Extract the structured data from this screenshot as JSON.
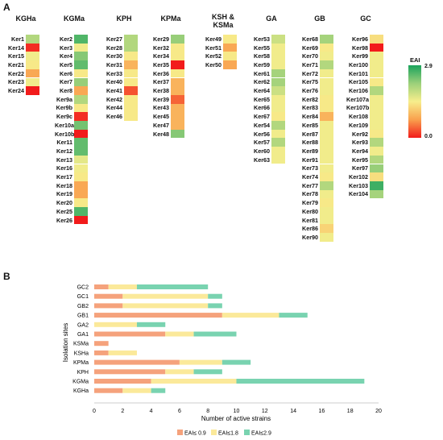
{
  "panel_a": {
    "label": "A"
  },
  "panel_b": {
    "label": "B"
  },
  "heatmap": {
    "legend": {
      "title": "EAI",
      "max_label": "2.9",
      "min_label": "0.0"
    },
    "groups": [
      {
        "name": "KGHa",
        "cells": [
          {
            "label": "Ker1",
            "eai": 2.0
          },
          {
            "label": "Ker14",
            "eai": 0.1
          },
          {
            "label": "Ker15",
            "eai": 1.5
          },
          {
            "label": "Ker21",
            "eai": 1.4
          },
          {
            "label": "Ker22",
            "eai": 0.8
          },
          {
            "label": "Ker23",
            "eai": 1.5
          },
          {
            "label": "Ker24",
            "eai": 0.0
          }
        ]
      },
      {
        "name": "KGMa",
        "cells": [
          {
            "label": "Ker2",
            "eai": 2.6
          },
          {
            "label": "Ker3",
            "eai": 1.5
          },
          {
            "label": "Ker4",
            "eai": 2.3
          },
          {
            "label": "Ker5",
            "eai": 2.5
          },
          {
            "label": "Ker6",
            "eai": 1.4
          },
          {
            "label": "Ker7",
            "eai": 2.2
          },
          {
            "label": "Ker8",
            "eai": 0.8
          },
          {
            "label": "Ker9a",
            "eai": 2.0
          },
          {
            "label": "Ker9b",
            "eai": 1.4
          },
          {
            "label": "Ker9c",
            "eai": 0.1
          },
          {
            "label": "Ker10a",
            "eai": 2.4
          },
          {
            "label": "Ker10b",
            "eai": 0.0
          },
          {
            "label": "Ker11",
            "eai": 2.5
          },
          {
            "label": "Ker12",
            "eai": 2.5
          },
          {
            "label": "Ker13",
            "eai": 1.6
          },
          {
            "label": "Ker16",
            "eai": 1.5
          },
          {
            "label": "Ker17",
            "eai": 1.4
          },
          {
            "label": "Ker18",
            "eai": 0.8
          },
          {
            "label": "Ker19",
            "eai": 0.8
          },
          {
            "label": "Ker20",
            "eai": 1.4
          },
          {
            "label": "Ker25",
            "eai": 2.6
          },
          {
            "label": "Ker26",
            "eai": 0.0
          }
        ]
      },
      {
        "name": "KPH",
        "cells": [
          {
            "label": "Ker27",
            "eai": 2.0
          },
          {
            "label": "Ker28",
            "eai": 2.0
          },
          {
            "label": "Ker30",
            "eai": 1.4
          },
          {
            "label": "Ker31",
            "eai": 0.9
          },
          {
            "label": "Ker33",
            "eai": 1.4
          },
          {
            "label": "Ker40",
            "eai": 1.4
          },
          {
            "label": "Ker41",
            "eai": 0.3
          },
          {
            "label": "Ker42",
            "eai": 1.4
          },
          {
            "label": "Ker44",
            "eai": 1.4
          },
          {
            "label": "Ker46",
            "eai": 1.4
          }
        ]
      },
      {
        "name": "KPMa",
        "cells": [
          {
            "label": "Ker29",
            "eai": 2.2
          },
          {
            "label": "Ker32",
            "eai": 1.4
          },
          {
            "label": "Ker34",
            "eai": 1.4
          },
          {
            "label": "Ker35",
            "eai": 0.0
          },
          {
            "label": "Ker36",
            "eai": 1.4
          },
          {
            "label": "Ker37",
            "eai": 0.9
          },
          {
            "label": "Ker38",
            "eai": 0.9
          },
          {
            "label": "Ker39",
            "eai": 0.4
          },
          {
            "label": "Ker43",
            "eai": 0.9
          },
          {
            "label": "Ker45",
            "eai": 0.9
          },
          {
            "label": "Ker47",
            "eai": 0.9
          },
          {
            "label": "Ker48",
            "eai": 2.3
          }
        ]
      },
      {
        "name": "KSH &\nKSMa",
        "cells": [
          {
            "label": "Ker49",
            "eai": 1.4
          },
          {
            "label": "Ker51",
            "eai": 0.8
          },
          {
            "label": "Ker52",
            "eai": 1.4
          },
          {
            "label": "Ker50",
            "eai": 0.8
          }
        ]
      },
      {
        "name": "GA",
        "cells": [
          {
            "label": "Ker53",
            "eai": 1.8
          },
          {
            "label": "Ker55",
            "eai": 1.5
          },
          {
            "label": "Ker58",
            "eai": 1.5
          },
          {
            "label": "Ker59",
            "eai": 1.5
          },
          {
            "label": "Ker61",
            "eai": 2.1
          },
          {
            "label": "Ker62",
            "eai": 2.1
          },
          {
            "label": "Ker64",
            "eai": 1.8
          },
          {
            "label": "Ker65",
            "eai": 1.5
          },
          {
            "label": "Ker66",
            "eai": 1.5
          },
          {
            "label": "Ker67",
            "eai": 1.4
          },
          {
            "label": "Ker54",
            "eai": 2.0
          },
          {
            "label": "Ker56",
            "eai": 1.5
          },
          {
            "label": "Ker57",
            "eai": 2.0
          },
          {
            "label": "Ker60",
            "eai": 1.5
          },
          {
            "label": "Ker63",
            "eai": 1.5
          }
        ]
      },
      {
        "name": "GB",
        "cells": [
          {
            "label": "Ker68",
            "eai": 2.1
          },
          {
            "label": "Ker69",
            "eai": 1.4
          },
          {
            "label": "Ker70",
            "eai": 1.5
          },
          {
            "label": "Ker71",
            "eai": 2.0
          },
          {
            "label": "Ker72",
            "eai": 1.5
          },
          {
            "label": "Ker75",
            "eai": 1.5
          },
          {
            "label": "Ker76",
            "eai": 1.5
          },
          {
            "label": "Ker82",
            "eai": 1.4
          },
          {
            "label": "Ker83",
            "eai": 1.4
          },
          {
            "label": "Ker84",
            "eai": 0.9
          },
          {
            "label": "Ker85",
            "eai": 1.5
          },
          {
            "label": "Ker87",
            "eai": 1.5
          },
          {
            "label": "Ker88",
            "eai": 1.5
          },
          {
            "label": "Ker89",
            "eai": 1.5
          },
          {
            "label": "Ker91",
            "eai": 1.5
          },
          {
            "label": "Ker73",
            "eai": 1.5
          },
          {
            "label": "Ker74",
            "eai": 1.4
          },
          {
            "label": "Ker77",
            "eai": 2.0
          },
          {
            "label": "Ker78",
            "eai": 1.5
          },
          {
            "label": "Ker79",
            "eai": 1.4
          },
          {
            "label": "Ker80",
            "eai": 1.5
          },
          {
            "label": "Ker81",
            "eai": 1.5
          },
          {
            "label": "Ker86",
            "eai": 1.2
          },
          {
            "label": "Ker90",
            "eai": 1.5
          }
        ]
      },
      {
        "name": "GC",
        "cells": [
          {
            "label": "Ker96",
            "eai": 1.3
          },
          {
            "label": "Ker98",
            "eai": 0.0
          },
          {
            "label": "Ker99",
            "eai": 1.5
          },
          {
            "label": "Ker100",
            "eai": 1.5
          },
          {
            "label": "Ker101",
            "eai": 1.5
          },
          {
            "label": "Ker105",
            "eai": 1.4
          },
          {
            "label": "Ker106",
            "eai": 2.0
          },
          {
            "label": "Ker107a",
            "eai": 1.5
          },
          {
            "label": "Ker107b",
            "eai": 1.5
          },
          {
            "label": "Ker108",
            "eai": 1.5
          },
          {
            "label": "Ker109",
            "eai": 1.5
          },
          {
            "label": "Ker92",
            "eai": 1.4
          },
          {
            "label": "Ker93",
            "eai": 2.0
          },
          {
            "label": "Ker94",
            "eai": 1.5
          },
          {
            "label": "Ker95",
            "eai": 2.0
          },
          {
            "label": "Ker97",
            "eai": 2.2
          },
          {
            "label": "Ker102",
            "eai": 1.3
          },
          {
            "label": "Ker103",
            "eai": 2.7
          },
          {
            "label": "Ker104",
            "eai": 2.1
          }
        ]
      }
    ]
  },
  "chart_data": {
    "type": "bar",
    "orientation": "horizontal",
    "stacked": true,
    "categories": [
      "GC2",
      "GC1",
      "GB2",
      "GB1",
      "GA2",
      "GA1",
      "KSMa",
      "KSHa",
      "KPMa",
      "KPH",
      "KGMa",
      "KGHa"
    ],
    "series": [
      {
        "name": "EAI≤ 0.9",
        "color": "#f5a27c",
        "values": [
          1,
          2,
          2,
          9,
          0,
          5,
          1,
          1,
          6,
          5,
          4,
          2
        ]
      },
      {
        "name": "EAI≤1.8",
        "color": "#fbe99a",
        "values": [
          2,
          6,
          6,
          4,
          3,
          2,
          0,
          2,
          3,
          2,
          6,
          2
        ]
      },
      {
        "name": "EAI≤2.9",
        "color": "#79d3b0",
        "values": [
          5,
          1,
          1,
          2,
          2,
          3,
          0,
          0,
          2,
          2,
          9,
          1
        ]
      }
    ],
    "xlabel": "Number of active strains",
    "ylabel": "Isolation sites",
    "xlim": [
      0,
      20
    ],
    "xticks": [
      0,
      2,
      4,
      6,
      8,
      10,
      12,
      14,
      16,
      18,
      20
    ],
    "grid": false,
    "legend_position": "bottom"
  }
}
